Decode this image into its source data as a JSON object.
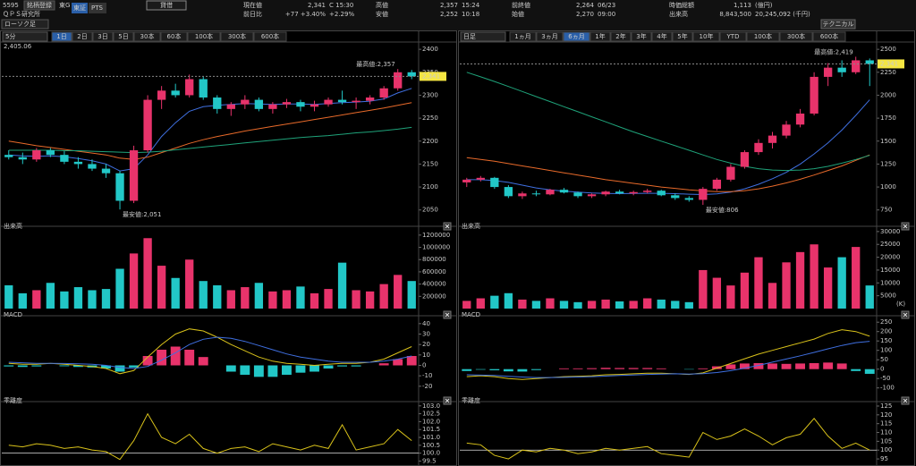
{
  "header": {
    "code": "5595",
    "register": "銘柄登録",
    "market": "東G",
    "exchange_tabs": [
      "東証",
      "PTS"
    ],
    "margin": "貸借",
    "name": "ＱＰＳ研究所",
    "chart_style": "ローソク足",
    "technical": "テクニカル",
    "quote": [
      {
        "label": "現在値",
        "value": "2,341",
        "note": "C 15:30"
      },
      {
        "label": "前日比",
        "value": "+77 +3.40%",
        "note": "+2.29%"
      },
      {
        "label": "高値",
        "value": "2,357",
        "note": "15:24"
      },
      {
        "label": "安値",
        "value": "2,252",
        "note": "10:18"
      },
      {
        "label": "前終値",
        "value": "2,264",
        "note": "06/23"
      },
      {
        "label": "始値",
        "value": "2,270",
        "note": "09:00"
      },
      {
        "label": "時価総額",
        "value": "1,113",
        "note": "(億円)"
      },
      {
        "label": "出来高",
        "value": "8,843,500",
        "note": "20,245,092 (千円)"
      }
    ]
  },
  "colors": {
    "up": "#e8336b",
    "down": "#22c7c7"
  },
  "left": {
    "interval": "5分",
    "ranges": [
      "1日",
      "2日",
      "3日",
      "5日",
      "30本",
      "60本",
      "100本",
      "300本",
      "600本"
    ],
    "active_range": 0,
    "top_label": "2,405.06",
    "price": {
      "ylim": [
        2030,
        2410
      ],
      "yticks": [
        2050,
        2100,
        2150,
        2200,
        2250,
        2300,
        2350,
        2400
      ],
      "high_label": "最高値:2,357",
      "low_label": "最安値:2,051",
      "last_label": "2,341",
      "candles": {
        "open": [
          2170,
          2165,
          2160,
          2180,
          2170,
          2155,
          2150,
          2140,
          2130,
          2070,
          2180,
          2290,
          2310,
          2300,
          2335,
          2295,
          2270,
          2280,
          2290,
          2270,
          2280,
          2285,
          2275,
          2280,
          2290,
          2285,
          2288,
          2295,
          2315,
          2350
        ],
        "high": [
          2180,
          2175,
          2185,
          2185,
          2178,
          2165,
          2160,
          2150,
          2135,
          2190,
          2300,
          2320,
          2325,
          2345,
          2340,
          2300,
          2285,
          2300,
          2295,
          2285,
          2292,
          2290,
          2288,
          2295,
          2310,
          2295,
          2300,
          2320,
          2357,
          2355
        ],
        "low": [
          2160,
          2150,
          2155,
          2165,
          2150,
          2140,
          2135,
          2120,
          2051,
          2065,
          2175,
          2270,
          2295,
          2295,
          2290,
          2260,
          2255,
          2270,
          2265,
          2260,
          2272,
          2265,
          2265,
          2275,
          2280,
          2270,
          2280,
          2290,
          2310,
          2335
        ],
        "close": [
          2165,
          2160,
          2180,
          2170,
          2155,
          2150,
          2140,
          2130,
          2070,
          2180,
          2290,
          2310,
          2300,
          2335,
          2295,
          2270,
          2280,
          2290,
          2270,
          2280,
          2285,
          2275,
          2280,
          2290,
          2285,
          2288,
          2295,
          2315,
          2350,
          2341
        ]
      },
      "ma": [
        {
          "color": "#3f6fe0",
          "values": [
            2170,
            2168,
            2167,
            2168,
            2166,
            2162,
            2157,
            2150,
            2135,
            2140,
            2170,
            2210,
            2240,
            2265,
            2275,
            2278,
            2280,
            2282,
            2281,
            2280,
            2281,
            2281,
            2280,
            2282,
            2284,
            2285,
            2287,
            2292,
            2305,
            2315
          ]
        },
        {
          "color": "#e86a2a",
          "values": [
            2200,
            2195,
            2190,
            2186,
            2182,
            2178,
            2174,
            2170,
            2163,
            2160,
            2165,
            2175,
            2185,
            2195,
            2203,
            2210,
            2216,
            2222,
            2227,
            2232,
            2237,
            2242,
            2247,
            2252,
            2257,
            2262,
            2267,
            2272,
            2278,
            2284
          ]
        },
        {
          "color": "#1fa37a",
          "values": [
            2180,
            2180,
            2180,
            2180,
            2179,
            2179,
            2178,
            2177,
            2176,
            2175,
            2176,
            2178,
            2181,
            2184,
            2187,
            2190,
            2193,
            2196,
            2199,
            2202,
            2205,
            2208,
            2210,
            2212,
            2215,
            2218,
            2220,
            2223,
            2226,
            2230
          ]
        }
      ]
    },
    "volume": {
      "title": "出来高",
      "ylim": [
        0,
        1300000
      ],
      "yticks": [
        200000,
        400000,
        600000,
        800000,
        1000000,
        1200000
      ],
      "values": [
        380000,
        250000,
        300000,
        420000,
        280000,
        350000,
        300000,
        320000,
        650000,
        900000,
        1150000,
        700000,
        500000,
        800000,
        450000,
        380000,
        300000,
        350000,
        420000,
        280000,
        300000,
        360000,
        250000,
        320000,
        750000,
        300000,
        280000,
        400000,
        550000,
        450000
      ]
    },
    "macd": {
      "title": "MACD",
      "ylim": [
        -27,
        45
      ],
      "yticks": [
        -20,
        -10,
        0,
        10,
        20,
        30,
        40
      ],
      "macd": {
        "color": "#d9c21a",
        "values": [
          2,
          1,
          1,
          2,
          1,
          0,
          -1,
          -3,
          -8,
          -5,
          8,
          20,
          30,
          35,
          33,
          27,
          20,
          14,
          8,
          4,
          2,
          1,
          0,
          1,
          2,
          2,
          3,
          6,
          12,
          18
        ]
      },
      "signal": {
        "color": "#3f6fe0",
        "values": [
          3,
          2.5,
          2,
          2,
          1.8,
          1.5,
          1,
          0,
          -2,
          -3,
          -1,
          5,
          12,
          20,
          25,
          27,
          26,
          23,
          19,
          15,
          11,
          8,
          6,
          4,
          3,
          3,
          3,
          4,
          6,
          9
        ]
      },
      "hist": [
        -1,
        -1.5,
        -1,
        0,
        -0.8,
        -1.5,
        -2,
        -3,
        -6,
        -2,
        9,
        15,
        18,
        15,
        8,
        0,
        -6,
        -9,
        -11,
        -11,
        -9,
        -7,
        -6,
        -3,
        -1,
        -1,
        0,
        2,
        6,
        9
      ]
    },
    "deviation": {
      "title": "乖離度",
      "ylim": [
        99.3,
        103.1
      ],
      "yticks": [
        99.5,
        {
          "value": 100,
          "label": "100.0"
        },
        100.5,
        {
          "value": 101,
          "label": "101.0"
        },
        101.5,
        {
          "value": 102,
          "label": "102.0"
        },
        102.5,
        {
          "value": 103,
          "label": "103.0"
        }
      ],
      "baseline": 100,
      "color": "#d9c21a",
      "values": [
        100.5,
        100.4,
        100.6,
        100.5,
        100.3,
        100.4,
        100.2,
        100.1,
        99.6,
        100.8,
        102.5,
        101.0,
        100.6,
        101.2,
        100.3,
        100.0,
        100.3,
        100.4,
        100.1,
        100.6,
        100.4,
        100.2,
        100.5,
        100.3,
        101.8,
        100.2,
        100.4,
        100.6,
        101.5,
        100.8
      ]
    }
  },
  "right": {
    "interval": "日足",
    "ranges": [
      "1ヵ月",
      "3ヵ月",
      "6ヵ月",
      "1年",
      "2年",
      "3年",
      "4年",
      "5年",
      "10年",
      "YTD",
      "100本",
      "300本",
      "600本"
    ],
    "active_range": 2,
    "price": {
      "ylim": [
        650,
        2550
      ],
      "yticks": [
        750,
        1000,
        1250,
        1500,
        1750,
        2000,
        2250,
        2500
      ],
      "high_label": "最高値:2,419",
      "low_label": "最安値:806",
      "last_label": "2,341",
      "candles": {
        "open": [
          1050,
          1080,
          1100,
          1000,
          900,
          930,
          920,
          970,
          940,
          900,
          920,
          950,
          930,
          945,
          960,
          910,
          880,
          860,
          980,
          1080,
          1220,
          1380,
          1480,
          1560,
          1680,
          1800,
          2200,
          2300,
          2250,
          2380
        ],
        "high": [
          1100,
          1120,
          1110,
          1020,
          950,
          960,
          980,
          990,
          950,
          930,
          960,
          970,
          960,
          980,
          970,
          930,
          900,
          1000,
          1100,
          1250,
          1400,
          1520,
          1600,
          1720,
          1850,
          2250,
          2350,
          2380,
          2419,
          2400
        ],
        "low": [
          1000,
          1060,
          980,
          880,
          870,
          900,
          910,
          930,
          880,
          880,
          900,
          920,
          910,
          930,
          900,
          860,
          840,
          806,
          960,
          1060,
          1200,
          1350,
          1420,
          1530,
          1650,
          1780,
          2100,
          2200,
          2230,
          2100
        ],
        "close": [
          1080,
          1100,
          1000,
          900,
          930,
          920,
          970,
          940,
          900,
          920,
          950,
          930,
          945,
          960,
          910,
          880,
          860,
          980,
          1080,
          1220,
          1380,
          1480,
          1560,
          1680,
          1800,
          2200,
          2300,
          2250,
          2380,
          2341
        ]
      },
      "ma": [
        {
          "color": "#3f6fe0",
          "values": [
            1080,
            1080,
            1070,
            1050,
            1020,
            990,
            970,
            955,
            945,
            935,
            930,
            928,
            930,
            932,
            932,
            928,
            922,
            918,
            925,
            945,
            980,
            1030,
            1090,
            1160,
            1250,
            1360,
            1480,
            1620,
            1780,
            1950
          ]
        },
        {
          "color": "#e86a2a",
          "values": [
            1320,
            1300,
            1280,
            1255,
            1230,
            1205,
            1180,
            1155,
            1130,
            1105,
            1080,
            1060,
            1040,
            1020,
            1000,
            985,
            970,
            958,
            950,
            950,
            960,
            980,
            1010,
            1045,
            1085,
            1130,
            1180,
            1230,
            1290,
            1350
          ]
        },
        {
          "color": "#1fa37a",
          "values": [
            2250,
            2200,
            2150,
            2095,
            2040,
            1985,
            1930,
            1875,
            1820,
            1765,
            1710,
            1655,
            1600,
            1550,
            1500,
            1450,
            1400,
            1350,
            1300,
            1260,
            1225,
            1200,
            1185,
            1180,
            1185,
            1200,
            1225,
            1260,
            1300,
            1345
          ]
        }
      ]
    },
    "volume": {
      "title": "出来高",
      "unit": "(K)",
      "ylim": [
        0,
        31000
      ],
      "yticks": [
        5000,
        10000,
        15000,
        20000,
        25000,
        30000
      ],
      "values": [
        3000,
        4000,
        5000,
        6000,
        3500,
        3000,
        4000,
        3000,
        2500,
        3000,
        3500,
        2800,
        3000,
        4000,
        3500,
        3000,
        2500,
        15000,
        12000,
        9000,
        14000,
        20000,
        10000,
        18000,
        22000,
        25000,
        16000,
        20000,
        24000,
        9000
      ]
    },
    "macd": {
      "title": "MACD",
      "ylim": [
        -130,
        270
      ],
      "yticks": [
        -100,
        -50,
        0,
        50,
        100,
        150,
        200,
        250
      ],
      "macd": {
        "color": "#d9c21a",
        "values": [
          -40,
          -35,
          -40,
          -50,
          -55,
          -50,
          -45,
          -40,
          -38,
          -35,
          -30,
          -28,
          -25,
          -22,
          -22,
          -25,
          -28,
          -20,
          5,
          30,
          55,
          80,
          100,
          120,
          140,
          160,
          190,
          210,
          200,
          175
        ]
      },
      "signal": {
        "color": "#3f6fe0",
        "values": [
          -30,
          -32,
          -34,
          -38,
          -42,
          -45,
          -45,
          -44,
          -42,
          -40,
          -37,
          -34,
          -31,
          -28,
          -26,
          -25,
          -26,
          -24,
          -18,
          -8,
          5,
          20,
          37,
          54,
          71,
          89,
          108,
          126,
          141,
          148
        ]
      },
      "hist": [
        -10,
        -3,
        -6,
        -12,
        -13,
        -5,
        0,
        4,
        4,
        5,
        7,
        6,
        6,
        6,
        4,
        0,
        -2,
        4,
        15,
        25,
        30,
        32,
        30,
        28,
        30,
        32,
        35,
        30,
        -10,
        -25
      ]
    },
    "deviation": {
      "title": "乖離度",
      "ylim": [
        92,
        126
      ],
      "yticks": [
        95,
        100,
        105,
        110,
        115,
        120,
        125
      ],
      "baseline": 100,
      "color": "#d9c21a",
      "values": [
        104,
        103,
        97,
        95,
        100,
        99,
        101,
        100,
        98,
        99,
        101,
        100,
        101,
        102,
        98,
        97,
        96,
        110,
        106,
        108,
        112,
        108,
        103,
        107,
        109,
        118,
        108,
        101,
        104,
        100
      ]
    }
  }
}
